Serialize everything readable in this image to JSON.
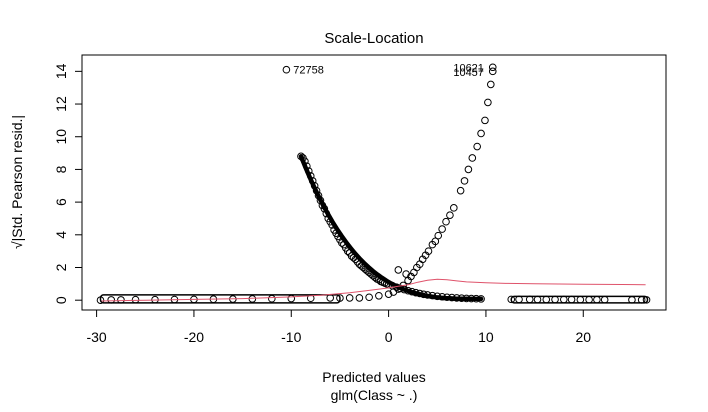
{
  "chart_data": {
    "type": "scatter",
    "title": "Scale-Location",
    "xlabel": "Predicted values",
    "subtitle": "glm(Class ~ .)",
    "ylabel": "√|Std. Pearson resid.|",
    "xlim": [
      -31.5,
      28.5
    ],
    "ylim": [
      -0.6,
      15.0
    ],
    "xticks": [
      -30,
      -20,
      -10,
      0,
      10,
      20
    ],
    "yticks": [
      0,
      2,
      4,
      6,
      8,
      10,
      12,
      14
    ],
    "grid": false,
    "legend": "none",
    "colors": {
      "points": "#000000",
      "smoother": "#DF536B"
    },
    "point_style": "open-circle",
    "annotations": [
      {
        "text": "72758",
        "x": -10.0,
        "y": 14.1
      },
      {
        "text": "10621",
        "x": 10.0,
        "y": 14.25
      },
      {
        "text": "10457",
        "x": 10.0,
        "y": 13.95
      }
    ],
    "series": [
      {
        "type": "scatter",
        "points": [
          [
            -9.0,
            8.8
          ],
          [
            -8.8,
            8.7
          ],
          [
            -8.6,
            8.5
          ],
          [
            -8.4,
            8.2
          ],
          [
            -8.2,
            7.9
          ],
          [
            -8.0,
            7.6
          ],
          [
            -7.8,
            7.3
          ],
          [
            -7.6,
            7.0
          ],
          [
            -7.4,
            6.7
          ],
          [
            -7.2,
            6.4
          ],
          [
            -7.0,
            6.1
          ],
          [
            -6.8,
            5.8
          ],
          [
            -6.6,
            5.6
          ],
          [
            -6.4,
            5.3
          ],
          [
            -6.2,
            5.0
          ],
          [
            -6.0,
            4.8
          ],
          [
            -5.8,
            4.6
          ],
          [
            -5.6,
            4.3
          ],
          [
            -5.4,
            4.1
          ],
          [
            -5.2,
            3.9
          ],
          [
            -5.0,
            3.7
          ],
          [
            -4.8,
            3.5
          ],
          [
            -4.6,
            3.4
          ],
          [
            -4.4,
            3.2
          ],
          [
            -4.2,
            3.0
          ],
          [
            -4.0,
            2.9
          ],
          [
            -3.8,
            2.7
          ],
          [
            -3.6,
            2.6
          ],
          [
            -3.4,
            2.5
          ],
          [
            -3.2,
            2.35
          ],
          [
            -3.0,
            2.2
          ],
          [
            -2.8,
            2.1
          ],
          [
            -2.6,
            2.0
          ],
          [
            -2.4,
            1.9
          ],
          [
            -2.2,
            1.8
          ],
          [
            -2.0,
            1.7
          ],
          [
            -1.8,
            1.6
          ],
          [
            -1.6,
            1.5
          ],
          [
            -1.4,
            1.4
          ],
          [
            -1.2,
            1.3
          ],
          [
            -1.0,
            1.25
          ],
          [
            -0.8,
            1.15
          ],
          [
            -0.6,
            1.1
          ],
          [
            -0.4,
            1.05
          ],
          [
            -0.2,
            1.0
          ],
          [
            0.0,
            0.95
          ],
          [
            0.4,
            0.88
          ],
          [
            0.8,
            0.8
          ],
          [
            1.2,
            0.72
          ],
          [
            1.6,
            0.65
          ],
          [
            2.0,
            0.58
          ],
          [
            2.4,
            0.52
          ],
          [
            2.8,
            0.46
          ],
          [
            3.2,
            0.41
          ],
          [
            3.6,
            0.36
          ],
          [
            4.0,
            0.32
          ],
          [
            4.5,
            0.28
          ],
          [
            5.0,
            0.24
          ],
          [
            5.5,
            0.21
          ],
          [
            6.0,
            0.18
          ],
          [
            6.5,
            0.16
          ],
          [
            7.0,
            0.14
          ],
          [
            7.5,
            0.12
          ],
          [
            8.0,
            0.11
          ],
          [
            8.5,
            0.1
          ],
          [
            9.0,
            0.09
          ],
          [
            9.5,
            0.08
          ],
          [
            -3.0,
            0.14
          ],
          [
            -2.0,
            0.18
          ],
          [
            -1.0,
            0.27
          ],
          [
            0.0,
            0.37
          ],
          [
            0.5,
            0.5
          ],
          [
            1.0,
            0.68
          ],
          [
            1.5,
            0.9
          ],
          [
            2.0,
            1.2
          ],
          [
            2.3,
            1.45
          ],
          [
            2.6,
            1.7
          ],
          [
            2.9,
            2.0
          ],
          [
            3.2,
            2.2
          ],
          [
            3.5,
            2.5
          ],
          [
            3.8,
            2.75
          ],
          [
            4.1,
            3.0
          ],
          [
            4.5,
            3.4
          ],
          [
            4.8,
            3.6
          ],
          [
            5.1,
            3.95
          ],
          [
            5.5,
            4.35
          ],
          [
            5.9,
            4.8
          ],
          [
            6.3,
            5.2
          ],
          [
            6.7,
            5.65
          ],
          [
            7.4,
            6.7
          ],
          [
            7.8,
            7.3
          ],
          [
            8.2,
            8.0
          ],
          [
            8.6,
            8.7
          ],
          [
            9.1,
            9.4
          ],
          [
            9.5,
            10.2
          ],
          [
            9.9,
            11.0
          ],
          [
            10.2,
            12.1
          ],
          [
            10.5,
            13.2
          ],
          [
            10.7,
            14.0
          ],
          [
            10.7,
            14.25
          ],
          [
            -10.5,
            14.1
          ],
          [
            1.0,
            1.85
          ],
          [
            1.8,
            1.6
          ],
          [
            -29.6,
            0.0
          ],
          [
            -28.5,
            0.02
          ],
          [
            -27.5,
            0.02
          ],
          [
            -26.0,
            0.03
          ],
          [
            -24.0,
            0.03
          ],
          [
            -22.0,
            0.04
          ],
          [
            -20.0,
            0.05
          ],
          [
            -18.0,
            0.06
          ],
          [
            -16.0,
            0.07
          ],
          [
            -14.0,
            0.08
          ],
          [
            -12.0,
            0.09
          ],
          [
            -10.0,
            0.1
          ],
          [
            -8.0,
            0.12
          ],
          [
            -6.0,
            0.14
          ],
          [
            -5.0,
            0.13
          ],
          [
            -4.0,
            0.14
          ],
          [
            12.6,
            0.05
          ],
          [
            13.4,
            0.05
          ],
          [
            14.5,
            0.05
          ],
          [
            15.3,
            0.04
          ],
          [
            16.2,
            0.04
          ],
          [
            17.1,
            0.04
          ],
          [
            18.0,
            0.04
          ],
          [
            18.8,
            0.04
          ],
          [
            19.7,
            0.03
          ],
          [
            20.6,
            0.03
          ],
          [
            21.4,
            0.03
          ],
          [
            22.2,
            0.03
          ],
          [
            25.0,
            0.02
          ],
          [
            26.0,
            0.02
          ],
          [
            26.5,
            0.02
          ]
        ]
      },
      {
        "type": "line",
        "name": "",
        "points": [
          [
            -29.5,
            -0.05
          ],
          [
            -25.0,
            0.0
          ],
          [
            -20.0,
            0.05
          ],
          [
            -15.0,
            0.1
          ],
          [
            -10.0,
            0.2
          ],
          [
            -7.0,
            0.3
          ],
          [
            -4.0,
            0.45
          ],
          [
            -2.0,
            0.6
          ],
          [
            0.0,
            0.75
          ],
          [
            1.0,
            0.85
          ],
          [
            2.0,
            0.95
          ],
          [
            3.0,
            1.1
          ],
          [
            4.0,
            1.22
          ],
          [
            5.0,
            1.28
          ],
          [
            6.0,
            1.25
          ],
          [
            7.0,
            1.18
          ],
          [
            8.0,
            1.12
          ],
          [
            10.0,
            1.07
          ],
          [
            12.0,
            1.03
          ],
          [
            15.0,
            1.01
          ],
          [
            20.0,
            0.98
          ],
          [
            24.0,
            0.96
          ],
          [
            26.4,
            0.95
          ]
        ]
      }
    ],
    "bands": [
      {
        "x0": -29.6,
        "x1": -5.0,
        "y0": 0.02,
        "y1": 0.14
      },
      {
        "x0": -9.0,
        "x1": 9.5,
        "y0": 0.08,
        "y1": 8.8,
        "curve": "decay"
      },
      {
        "x0": 12.6,
        "x1": 26.6,
        "y0": 0.02,
        "y1": 0.05
      }
    ]
  }
}
